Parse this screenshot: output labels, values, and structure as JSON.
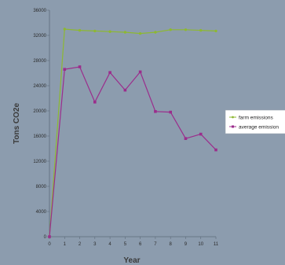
{
  "chart_data": {
    "type": "line",
    "x": [
      0,
      1,
      2,
      3,
      4,
      5,
      6,
      7,
      8,
      9,
      10,
      11
    ],
    "series": [
      {
        "name": "farm emissions",
        "color": "#8db832",
        "marker": "circle",
        "values": [
          0,
          33000,
          32800,
          32700,
          32600,
          32500,
          32300,
          32500,
          32900,
          32900,
          32800,
          32700
        ]
      },
      {
        "name": "average emission",
        "color": "#9b2d8c",
        "marker": "square",
        "values": [
          0,
          26600,
          27000,
          21400,
          26100,
          23300,
          26200,
          19900,
          19800,
          15600,
          16300,
          13800
        ]
      }
    ],
    "xticks": [
      "0",
      "1",
      "2",
      "3",
      "4",
      "5",
      "6",
      "7",
      "8",
      "9",
      "10",
      "11"
    ],
    "yticks": [
      "0",
      "4000",
      "8000",
      "12000",
      "16000",
      "20000",
      "24000",
      "28000",
      "32000",
      "36000"
    ],
    "xlabel": "Year",
    "ylabel": "Tons CO2e",
    "xlim": [
      0,
      11
    ],
    "ylim": [
      0,
      36000
    ],
    "grid": false,
    "legend_position": "right",
    "colors": {
      "background": "#8c9cae",
      "axis": "#5d6b7a",
      "legend_bg": "#ffffff"
    }
  }
}
